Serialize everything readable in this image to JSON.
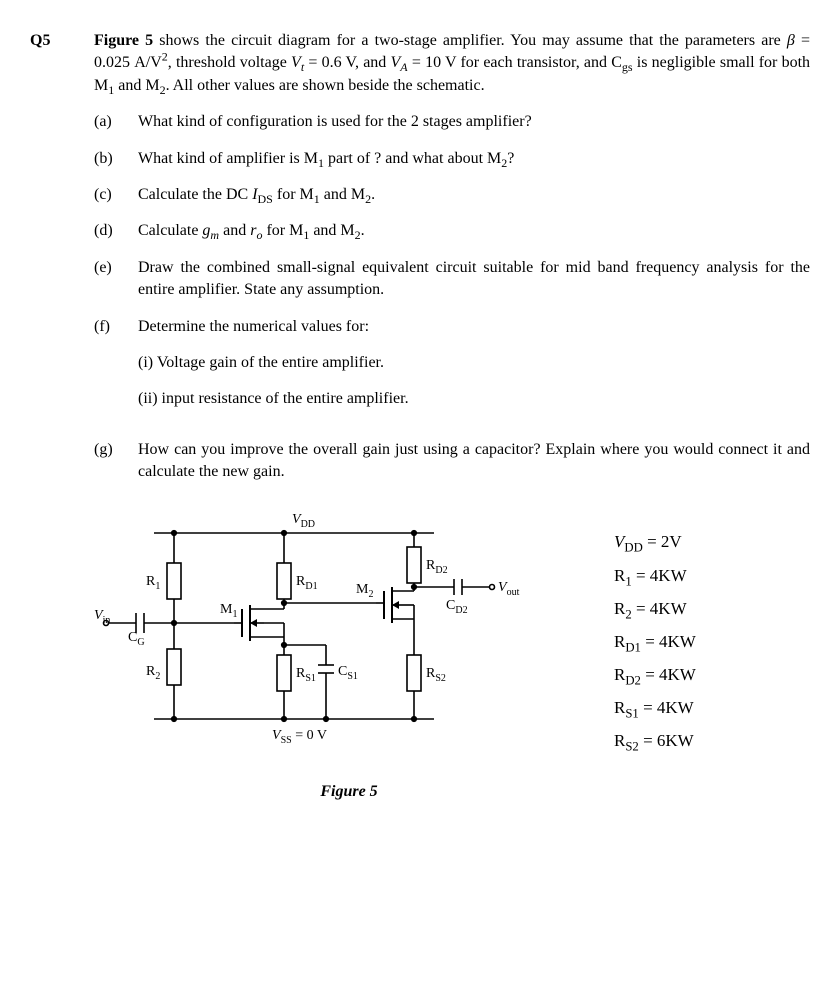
{
  "question_number": "Q5",
  "intro_html": "<span class='figref'>Figure 5</span> shows the circuit diagram for a two-stage amplifier. You may assume that the parameters are <span class='italic'>β</span> = 0.025 A/V<sup>2</sup>, threshold voltage <span class='italic'>V<sub>t</sub></span> = 0.6 V, and <span class='italic'>V<sub>A</sub></span> = 10 V for each transistor, and C<sub>gs</sub> is negligible small for both M<sub>1</sub> and M<sub>2</sub>. All other values are shown beside the schematic.",
  "parts": [
    {
      "letter": "(a)",
      "html": "What kind of configuration is used for the 2 stages amplifier?"
    },
    {
      "letter": "(b)",
      "html": "What kind of amplifier is M<sub>1</sub> part of ? and what about M<sub>2</sub>?"
    },
    {
      "letter": "(c)",
      "html": "Calculate the DC <span class='italic'>I</span><sub>DS</sub> for M<sub>1</sub> and M<sub>2</sub>."
    },
    {
      "letter": "(d)",
      "html": "Calculate <span class='italic'>g<sub>m</sub></span> and <span class='italic'>r<sub>o</sub></span> for M<sub>1</sub> and M<sub>2</sub>."
    },
    {
      "letter": "(e)",
      "html": "Draw the combined small-signal equivalent circuit suitable for mid band frequency analysis for the entire amplifier. State any assumption."
    },
    {
      "letter": "(f)",
      "html": "Determine the numerical values for:",
      "sub": [
        "(i) Voltage gain of the entire amplifier.",
        "(ii) input resistance of the entire amplifier."
      ]
    },
    {
      "letter": "(g)",
      "html": "How can you improve the overall gain just using a capacitor? Explain where you would connect it and calculate the new gain."
    }
  ],
  "circuit": {
    "VDD_label": "V",
    "VDD_sub": "DD",
    "VSS_label": "V",
    "VSS_sub": "SS",
    "VSS_val": " = 0 V",
    "Vin": "V",
    "Vin_sub": "in",
    "Vout": "V",
    "Vout_sub": "out",
    "R1": "R",
    "R1_sub": "1",
    "R2": "R",
    "R2_sub": "2",
    "RD1": "R",
    "RD1_sub": "D1",
    "RD2": "R",
    "RD2_sub": "D2",
    "RS1": "R",
    "RS1_sub": "S1",
    "RS2": "R",
    "RS2_sub": "S2",
    "CG": "C",
    "CG_sub": "G",
    "CS1": "C",
    "CS1_sub": "S1",
    "CD2": "C",
    "CD2_sub": "D2",
    "M1": "M",
    "M1_sub": "1",
    "M2": "M",
    "M2_sub": "2"
  },
  "values": [
    {
      "lhs_html": "<span class='italic'>V</span><sub>DD</sub>",
      "rhs": "2V"
    },
    {
      "lhs_html": "R<sub>1</sub>",
      "rhs": "4KW"
    },
    {
      "lhs_html": "R<sub>2</sub>",
      "rhs": "4KW"
    },
    {
      "lhs_html": "R<sub>D1</sub>",
      "rhs": "4KW"
    },
    {
      "lhs_html": "R<sub>D2</sub>",
      "rhs": "4KW"
    },
    {
      "lhs_html": "R<sub>S1</sub>",
      "rhs": "4KW"
    },
    {
      "lhs_html": "R<sub>S2</sub>",
      "rhs": "6KW"
    }
  ],
  "figure_caption": "Figure 5",
  "colors": {
    "stroke": "#000000",
    "fill": "#ffffff"
  },
  "svg_style": {
    "stroke_width_thick": 2,
    "stroke_width_thin": 1.3
  }
}
